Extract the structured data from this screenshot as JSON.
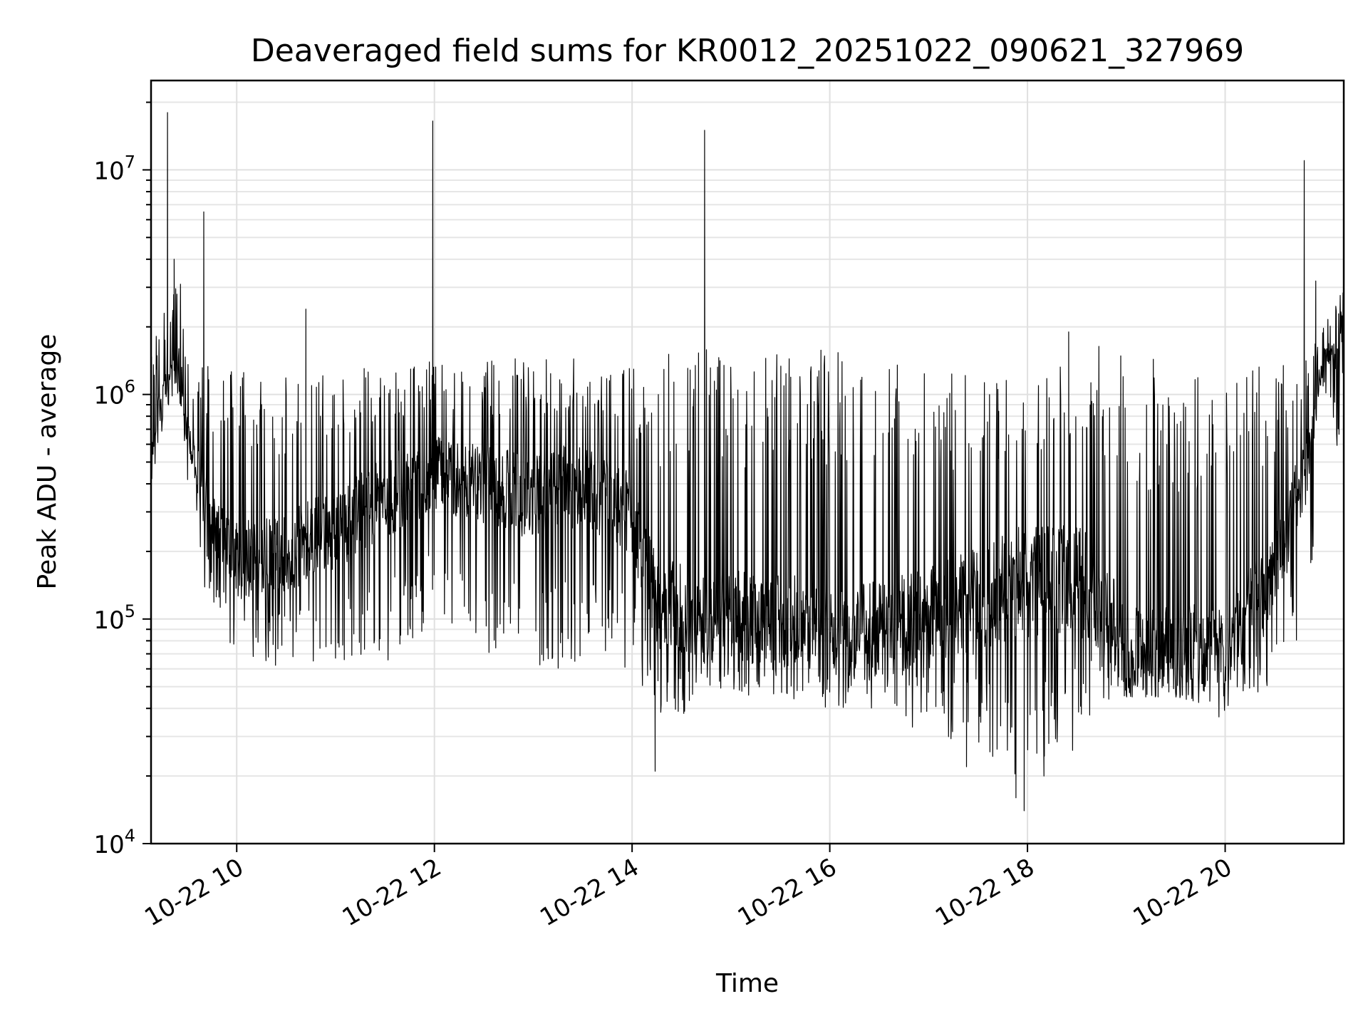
{
  "chart_data": {
    "type": "line",
    "title": "Deaveraged field sums for KR0012_20251022_090621_327969",
    "xlabel": "Time",
    "ylabel": "Peak ADU - average",
    "yscale": "log",
    "ylim": [
      10000,
      25000000
    ],
    "xlim": [
      "2025-10-22 09:08",
      "2025-10-22 21:12"
    ],
    "grid": true,
    "legend": "none",
    "line_color": "#000000",
    "x_ticks": [
      {
        "t": "2025-10-22 10:00",
        "label": "10-22 10"
      },
      {
        "t": "2025-10-22 12:00",
        "label": "10-22 12"
      },
      {
        "t": "2025-10-22 14:00",
        "label": "10-22 14"
      },
      {
        "t": "2025-10-22 16:00",
        "label": "10-22 16"
      },
      {
        "t": "2025-10-22 18:00",
        "label": "10-22 18"
      },
      {
        "t": "2025-10-22 20:00",
        "label": "10-22 20"
      }
    ],
    "y_ticks": [
      {
        "value": 10000,
        "base": "10",
        "exp": "4"
      },
      {
        "value": 100000,
        "base": "10",
        "exp": "5"
      },
      {
        "value": 1000000,
        "base": "10",
        "exp": "6"
      },
      {
        "value": 10000000,
        "base": "10",
        "exp": "7"
      }
    ],
    "series": [
      {
        "x": [
          "2025-10-22 09:08",
          "2025-10-22 09:15",
          "2025-10-22 09:20",
          "2025-10-22 09:25",
          "2025-10-22 09:30",
          "2025-10-22 09:35",
          "2025-10-22 09:40",
          "2025-10-22 09:45",
          "2025-10-22 09:50",
          "2025-10-22 10:00",
          "2025-10-22 10:30",
          "2025-10-22 11:00",
          "2025-10-22 11:30",
          "2025-10-22 12:00",
          "2025-10-22 12:30",
          "2025-10-22 13:00",
          "2025-10-22 13:30",
          "2025-10-22 14:00",
          "2025-10-22 14:10",
          "2025-10-22 14:20",
          "2025-10-22 14:40",
          "2025-10-22 15:00",
          "2025-10-22 15:30",
          "2025-10-22 16:00",
          "2025-10-22 16:30",
          "2025-10-22 17:00",
          "2025-10-22 17:30",
          "2025-10-22 18:00",
          "2025-10-22 18:30",
          "2025-10-22 18:45",
          "2025-10-22 19:00",
          "2025-10-22 19:30",
          "2025-10-22 20:00",
          "2025-10-22 20:30",
          "2025-10-22 20:50",
          "2025-10-22 21:00",
          "2025-10-22 21:12"
        ],
        "typical": [
          600000,
          1000000,
          1300000,
          1400000,
          700000,
          500000,
          350000,
          300000,
          250000,
          180000,
          200000,
          250000,
          350000,
          450000,
          400000,
          350000,
          400000,
          300000,
          150000,
          110000,
          100000,
          100000,
          100000,
          90000,
          90000,
          100000,
          120000,
          150000,
          150000,
          120000,
          70000,
          70000,
          80000,
          150000,
          500000,
          1500000,
          1600000
        ],
        "high": [
          1500000,
          2500000,
          2500000,
          4000000,
          1400000,
          1300000,
          1400000,
          1300000,
          1200000,
          1300000,
          1200000,
          1300000,
          1400000,
          1500000,
          1400000,
          1500000,
          1500000,
          1400000,
          1100000,
          1600000,
          1600000,
          1600000,
          1600000,
          1600000,
          1500000,
          1400000,
          1400000,
          1300000,
          1700000,
          1900000,
          1500000,
          1400000,
          1200000,
          1400000,
          1500000,
          2000000,
          3000000
        ],
        "low": [
          300000,
          700000,
          900000,
          1000000,
          400000,
          300000,
          120000,
          110000,
          90000,
          70000,
          60000,
          60000,
          60000,
          90000,
          70000,
          60000,
          60000,
          60000,
          35000,
          30000,
          45000,
          45000,
          45000,
          40000,
          40000,
          30000,
          25000,
          18000,
          25000,
          40000,
          45000,
          45000,
          35000,
          50000,
          80000,
          1100000,
          400000
        ],
        "spikes": [
          {
            "t": "2025-10-22 09:18",
            "value": 18000000
          },
          {
            "t": "2025-10-22 09:22",
            "value": 4000000
          },
          {
            "t": "2025-10-22 09:40",
            "value": 6500000
          },
          {
            "t": "2025-10-22 10:42",
            "value": 2400000
          },
          {
            "t": "2025-10-22 11:59",
            "value": 16500000
          },
          {
            "t": "2025-10-22 14:44",
            "value": 15000000
          },
          {
            "t": "2025-10-22 18:25",
            "value": 1900000
          },
          {
            "t": "2025-10-22 20:48",
            "value": 11000000
          },
          {
            "t": "2025-10-22 20:55",
            "value": 3200000
          }
        ],
        "dips": [
          {
            "t": "2025-10-22 14:14",
            "value": 21000
          },
          {
            "t": "2025-10-22 17:23",
            "value": 22000
          },
          {
            "t": "2025-10-22 17:53",
            "value": 16000
          },
          {
            "t": "2025-10-22 17:58",
            "value": 14000
          },
          {
            "t": "2025-10-22 18:10",
            "value": 20000
          }
        ]
      }
    ]
  }
}
